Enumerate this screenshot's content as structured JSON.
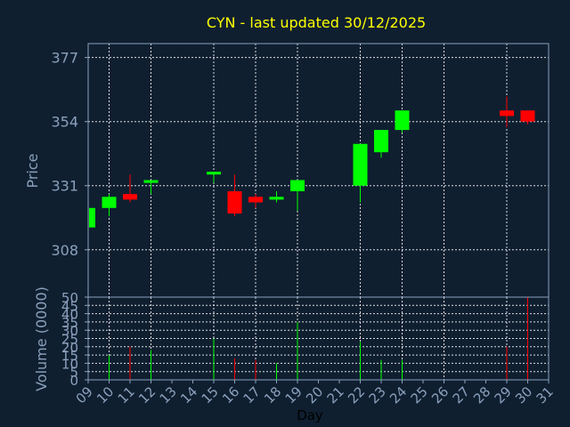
{
  "colors": {
    "background": "#0f1f30",
    "title": "#ffff00",
    "axis_text": "#8aa0bb",
    "up": "#00ff00",
    "down": "#ff0000",
    "grid": "#ffffff"
  },
  "chart_data": {
    "type": "candlestick",
    "title": "CYN - last updated 30/12/2025",
    "xlabel": "Day",
    "price_ylabel": "Price",
    "volume_ylabel": "Volume (0000)",
    "grid": true,
    "price_ylim": [
      291,
      382
    ],
    "price_ticks": [
      308,
      331,
      354,
      377
    ],
    "volume_ylim": [
      0,
      50
    ],
    "volume_ticks": [
      0,
      5,
      10,
      15,
      20,
      25,
      30,
      35,
      40,
      45,
      50
    ],
    "x_ticks": [
      "09",
      "10",
      "11",
      "12",
      "13",
      "14",
      "15",
      "16",
      "17",
      "18",
      "19",
      "20",
      "21",
      "22",
      "23",
      "24",
      "25",
      "26",
      "27",
      "28",
      "29",
      "30",
      "31"
    ],
    "x_grid_days": [
      10,
      12,
      15,
      17,
      19,
      22,
      24,
      26,
      29
    ],
    "candles": [
      {
        "day": 9,
        "open": 316,
        "high": 323,
        "low": 316,
        "close": 323,
        "volume": 0
      },
      {
        "day": 10,
        "open": 323,
        "high": 328,
        "low": 320,
        "close": 327,
        "volume": 15
      },
      {
        "day": 11,
        "open": 328,
        "high": 335,
        "low": 325,
        "close": 326,
        "volume": 20
      },
      {
        "day": 12,
        "open": 332,
        "high": 333,
        "low": 328,
        "close": 333,
        "volume": 18
      },
      {
        "day": 15,
        "open": 335,
        "high": 336,
        "low": 332,
        "close": 336,
        "volume": 25
      },
      {
        "day": 16,
        "open": 329,
        "high": 335,
        "low": 320,
        "close": 321,
        "volume": 13
      },
      {
        "day": 17,
        "open": 327,
        "high": 328,
        "low": 323,
        "close": 325,
        "volume": 12
      },
      {
        "day": 18,
        "open": 326,
        "high": 329,
        "low": 325,
        "close": 327,
        "volume": 10
      },
      {
        "day": 19,
        "open": 329,
        "high": 333,
        "low": 322,
        "close": 333,
        "volume": 35
      },
      {
        "day": 22,
        "open": 331,
        "high": 346,
        "low": 325,
        "close": 346,
        "volume": 23
      },
      {
        "day": 23,
        "open": 343,
        "high": 351,
        "low": 341,
        "close": 351,
        "volume": 12
      },
      {
        "day": 24,
        "open": 351,
        "high": 358,
        "low": 350,
        "close": 358,
        "volume": 12
      },
      {
        "day": 29,
        "open": 358,
        "high": 363,
        "low": 352,
        "close": 356,
        "volume": 20
      },
      {
        "day": 30,
        "open": 358,
        "high": 358,
        "low": 353,
        "close": 354,
        "volume": 50
      }
    ]
  }
}
